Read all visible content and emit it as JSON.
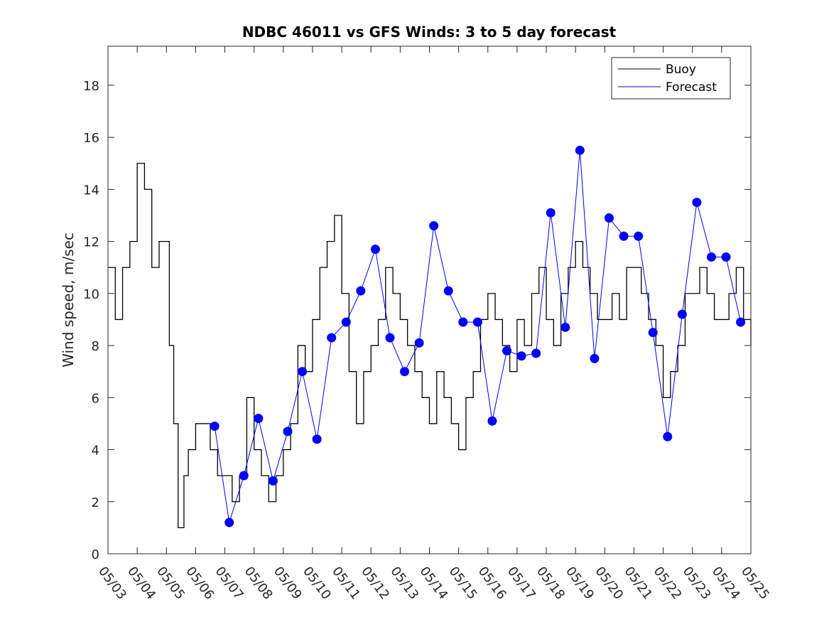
{
  "chart_data": {
    "type": "line",
    "title": "NDBC 46011 vs GFS Winds: 3 to 5 day forecast",
    "xlabel": "",
    "ylabel": "Wind speed, m/sec",
    "ylim": [
      0,
      19.5
    ],
    "yticks": [
      0,
      2,
      4,
      6,
      8,
      10,
      12,
      14,
      16,
      18
    ],
    "xlim": [
      "05/03",
      "05/25"
    ],
    "xtick_labels": [
      "05/03",
      "05/04",
      "05/05",
      "05/06",
      "05/07",
      "05/08",
      "05/09",
      "05/10",
      "05/11",
      "05/12",
      "05/13",
      "05/14",
      "05/15",
      "05/16",
      "05/17",
      "05/18",
      "05/19",
      "05/20",
      "05/21",
      "05/22",
      "05/23",
      "05/24",
      "05/25"
    ],
    "grid": false,
    "legend": {
      "position": "top-right",
      "entries": [
        {
          "name": "Buoy",
          "color": "#000000"
        },
        {
          "name": "Forecast",
          "color": "#0000ff"
        }
      ]
    },
    "series": [
      {
        "name": "Buoy",
        "color": "#000000",
        "day_offset": [
          0.0,
          0.25,
          0.5,
          0.75,
          1.0,
          1.25,
          1.5,
          1.75,
          2.0,
          2.1,
          2.25,
          2.4,
          2.5,
          2.6,
          2.75,
          3.0,
          3.25,
          3.5,
          3.75,
          4.0,
          4.25,
          4.5,
          4.75,
          5.0,
          5.25,
          5.5,
          5.75,
          6.0,
          6.25,
          6.5,
          6.75,
          7.0,
          7.25,
          7.5,
          7.75,
          8.0,
          8.25,
          8.5,
          8.75,
          9.0,
          9.25,
          9.5,
          9.75,
          10.0,
          10.25,
          10.5,
          10.75,
          11.0,
          11.25,
          11.5,
          11.75,
          12.0,
          12.25,
          12.5,
          12.75,
          13.0,
          13.25,
          13.5,
          13.75,
          14.0,
          14.25,
          14.5,
          14.75,
          15.0,
          15.25,
          15.5,
          15.75,
          16.0,
          16.25,
          16.5,
          16.75,
          17.0,
          17.25,
          17.5,
          17.75,
          18.0,
          18.25,
          18.5,
          18.75,
          19.0,
          19.25,
          19.5,
          19.75,
          20.0,
          20.25,
          20.5,
          20.75,
          21.0,
          21.25,
          21.5,
          21.75,
          22.0
        ],
        "values": [
          11,
          9,
          11,
          12,
          15,
          14,
          11,
          12,
          12,
          8,
          5,
          1,
          1,
          3,
          4,
          5,
          5,
          4,
          3,
          3,
          2,
          3,
          6,
          4,
          3,
          2,
          3,
          4,
          5,
          8,
          7,
          9,
          11,
          12,
          13,
          10,
          7,
          5,
          7,
          8,
          9,
          11,
          10,
          9,
          8,
          7,
          6,
          5,
          7,
          6,
          5,
          4,
          6,
          7,
          9,
          10,
          9,
          8,
          7,
          9,
          8,
          10,
          11,
          9,
          8,
          10,
          11,
          12,
          11,
          10,
          9,
          9,
          10,
          9,
          11,
          11,
          10,
          9,
          8,
          6,
          7,
          8,
          10,
          10,
          11,
          10,
          9,
          9,
          10,
          11,
          9,
          8
        ]
      },
      {
        "name": "Forecast",
        "color": "#0000ff",
        "day_offset": [
          3.65,
          4.15,
          4.65,
          5.15,
          5.65,
          6.15,
          6.65,
          7.15,
          7.65,
          8.15,
          8.65,
          9.15,
          9.65,
          10.15,
          10.65,
          11.15,
          11.65,
          12.15,
          12.65,
          13.15,
          13.65,
          14.15,
          14.65,
          15.15,
          15.65,
          16.15,
          16.65,
          17.15,
          17.65,
          18.15,
          18.65,
          19.15,
          19.65,
          20.15,
          20.65,
          21.15,
          21.65
        ],
        "values": [
          4.9,
          1.2,
          3.0,
          5.2,
          2.8,
          4.7,
          7.0,
          4.4,
          8.3,
          8.9,
          10.1,
          11.7,
          8.3,
          7.0,
          8.1,
          12.6,
          10.1,
          8.9,
          8.9,
          5.1,
          7.8,
          7.6,
          7.7,
          13.1,
          8.7,
          15.5,
          7.5,
          12.9,
          12.2,
          12.2,
          8.5,
          4.5,
          9.2,
          13.5,
          11.4,
          11.4,
          8.9
        ]
      }
    ]
  }
}
